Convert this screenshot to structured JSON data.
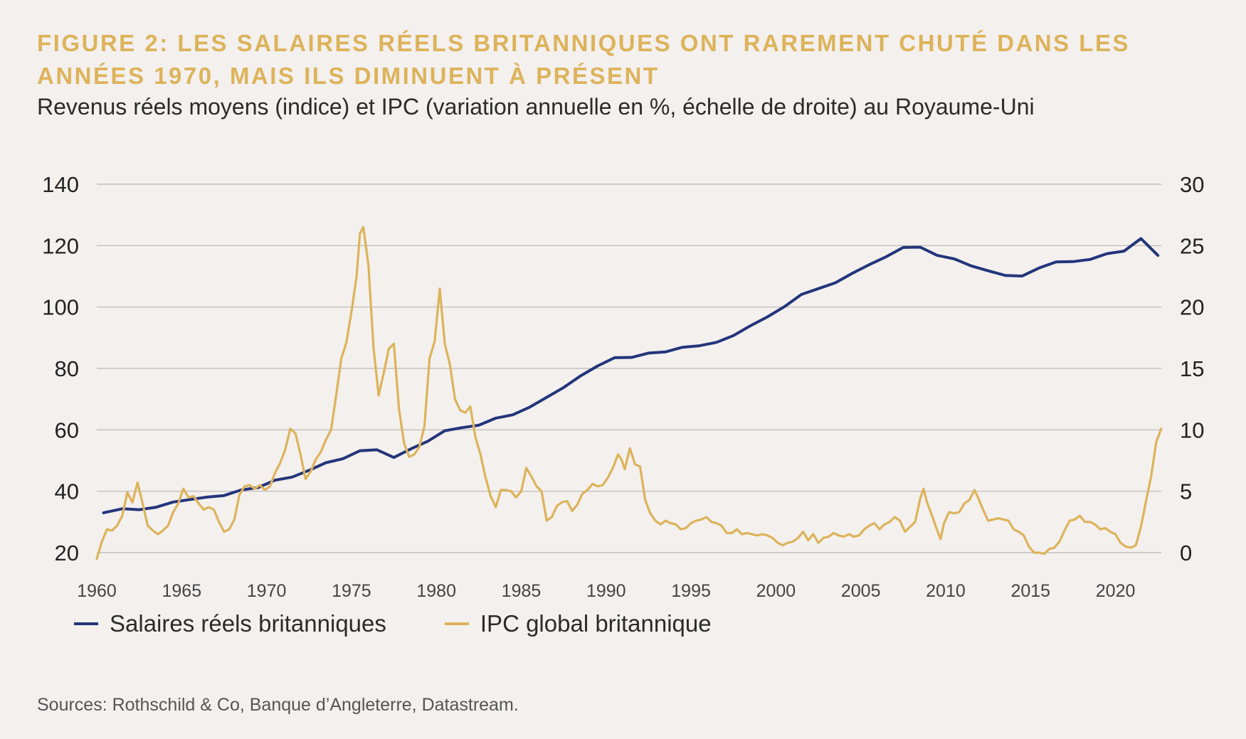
{
  "header": {
    "title": "FIGURE 2: LES SALAIRES RÉELS BRITANNIQUES ONT RAREMENT CHUTÉ DANS LES ANNÉES 1970, MAIS ILS DIMINUENT À PRÉSENT",
    "subtitle": "Revenus réels moyens (indice) et IPC (variation annuelle en %, échelle de droite) au Royaume-Uni"
  },
  "footer": {
    "source": "Sources: Rothschild & Co, Banque d’Angleterre, Datastream."
  },
  "colors": {
    "background": "#f3f0ee",
    "title": "#ddb35a",
    "wages": "#23357a",
    "cpi": "#ddb35a",
    "grid": "#b9b5b2"
  },
  "chart_data": {
    "type": "line",
    "title": "",
    "xlabel": "",
    "ylabel": "",
    "xlim": [
      1960,
      2022.7
    ],
    "ylim_left": [
      20,
      140
    ],
    "ylim_right": [
      0,
      30
    ],
    "x_ticks": [
      "1960",
      "1965",
      "1970",
      "1975",
      "1980",
      "1985",
      "1990",
      "1995",
      "2000",
      "2005",
      "2010",
      "2015",
      "2020"
    ],
    "y_ticks_left": [
      "20",
      "40",
      "60",
      "80",
      "100",
      "120",
      "140"
    ],
    "y_ticks_right": [
      "0",
      "5",
      "10",
      "15",
      "20",
      "25",
      "30"
    ],
    "grid": true,
    "legend_position": "bottom-left",
    "series": [
      {
        "name": "Salaires réels britanniques",
        "axis": "left",
        "color": "#23357a",
        "points": [
          [
            1960.4,
            33
          ],
          [
            1961.5,
            34.3
          ],
          [
            1962.5,
            34
          ],
          [
            1963.5,
            34.8
          ],
          [
            1964.5,
            36.5
          ],
          [
            1965.5,
            37.3
          ],
          [
            1966.5,
            38.1
          ],
          [
            1967.5,
            38.6
          ],
          [
            1968.5,
            40.4
          ],
          [
            1969.5,
            41.2
          ],
          [
            1970.5,
            43.6
          ],
          [
            1971.5,
            44.6
          ],
          [
            1972.5,
            46.8
          ],
          [
            1973.5,
            49.3
          ],
          [
            1974.5,
            50.6
          ],
          [
            1975.5,
            53.2
          ],
          [
            1976.5,
            53.5
          ],
          [
            1977.5,
            51
          ],
          [
            1978.5,
            53.8
          ],
          [
            1979.5,
            56.3
          ],
          [
            1980.5,
            59.7
          ],
          [
            1981.5,
            60.7
          ],
          [
            1982.5,
            61.5
          ],
          [
            1983.5,
            63.8
          ],
          [
            1984.5,
            64.9
          ],
          [
            1985.5,
            67.4
          ],
          [
            1986.5,
            70.6
          ],
          [
            1987.5,
            73.8
          ],
          [
            1988.5,
            77.6
          ],
          [
            1989.5,
            80.8
          ],
          [
            1990.5,
            83.5
          ],
          [
            1991.5,
            83.6
          ],
          [
            1992.5,
            85
          ],
          [
            1993.5,
            85.4
          ],
          [
            1994.5,
            86.9
          ],
          [
            1995.5,
            87.4
          ],
          [
            1996.5,
            88.5
          ],
          [
            1997.5,
            90.7
          ],
          [
            1998.5,
            93.9
          ],
          [
            1999.5,
            96.8
          ],
          [
            2000.5,
            100.1
          ],
          [
            2001.5,
            104.1
          ],
          [
            2002.5,
            106
          ],
          [
            2003.5,
            107.9
          ],
          [
            2004.5,
            111
          ],
          [
            2005.5,
            113.8
          ],
          [
            2006.5,
            116.4
          ],
          [
            2007.5,
            119.4
          ],
          [
            2008.5,
            119.5
          ],
          [
            2009.5,
            116.8
          ],
          [
            2010.5,
            115.7
          ],
          [
            2011.5,
            113.4
          ],
          [
            2012.5,
            111.8
          ],
          [
            2013.5,
            110.3
          ],
          [
            2014.5,
            110.1
          ],
          [
            2015.5,
            112.7
          ],
          [
            2016.5,
            114.7
          ],
          [
            2017.5,
            114.8
          ],
          [
            2018.5,
            115.5
          ],
          [
            2019.5,
            117.4
          ],
          [
            2020.5,
            118.2
          ],
          [
            2021.5,
            122.3
          ],
          [
            2022.5,
            116.8
          ]
        ]
      },
      {
        "name": "IPC global britannique",
        "axis": "right",
        "color": "#ddb35a",
        "points": [
          [
            1960,
            -0.5
          ],
          [
            1960.3,
            0.9
          ],
          [
            1960.6,
            1.9
          ],
          [
            1960.9,
            1.8
          ],
          [
            1961.2,
            2.2
          ],
          [
            1961.5,
            3
          ],
          [
            1961.8,
            4.9
          ],
          [
            1962.1,
            4.1
          ],
          [
            1962.4,
            5.7
          ],
          [
            1962.7,
            4
          ],
          [
            1963,
            2.2
          ],
          [
            1963.3,
            1.8
          ],
          [
            1963.6,
            1.5
          ],
          [
            1963.9,
            1.8
          ],
          [
            1964.2,
            2.2
          ],
          [
            1964.5,
            3.3
          ],
          [
            1964.8,
            4
          ],
          [
            1965.1,
            5.2
          ],
          [
            1965.4,
            4.5
          ],
          [
            1965.7,
            4.6
          ],
          [
            1966,
            4
          ],
          [
            1966.3,
            3.5
          ],
          [
            1966.6,
            3.7
          ],
          [
            1966.9,
            3.5
          ],
          [
            1967.2,
            2.5
          ],
          [
            1967.5,
            1.7
          ],
          [
            1967.8,
            1.9
          ],
          [
            1968.1,
            2.7
          ],
          [
            1968.4,
            4.7
          ],
          [
            1968.7,
            5.4
          ],
          [
            1969,
            5.5
          ],
          [
            1969.3,
            5.2
          ],
          [
            1969.6,
            5.5
          ],
          [
            1969.9,
            5.1
          ],
          [
            1970.2,
            5.4
          ],
          [
            1970.5,
            6.5
          ],
          [
            1970.8,
            7.3
          ],
          [
            1971.1,
            8.4
          ],
          [
            1971.4,
            10.1
          ],
          [
            1971.7,
            9.7
          ],
          [
            1972,
            8
          ],
          [
            1972.3,
            6
          ],
          [
            1972.6,
            6.6
          ],
          [
            1972.9,
            7.6
          ],
          [
            1973.2,
            8.2
          ],
          [
            1973.5,
            9.2
          ],
          [
            1973.8,
            10
          ],
          [
            1974.1,
            12.8
          ],
          [
            1974.4,
            15.8
          ],
          [
            1974.7,
            17.1
          ],
          [
            1975,
            19.6
          ],
          [
            1975.3,
            22.5
          ],
          [
            1975.5,
            26
          ],
          [
            1975.7,
            26.5
          ],
          [
            1976,
            23.4
          ],
          [
            1976.3,
            16.7
          ],
          [
            1976.6,
            12.8
          ],
          [
            1976.9,
            14.6
          ],
          [
            1977.2,
            16.6
          ],
          [
            1977.5,
            17
          ],
          [
            1977.8,
            11.7
          ],
          [
            1978.1,
            8.9
          ],
          [
            1978.4,
            7.8
          ],
          [
            1978.7,
            8
          ],
          [
            1979,
            8.6
          ],
          [
            1979.3,
            10.3
          ],
          [
            1979.6,
            15.8
          ],
          [
            1979.9,
            17.2
          ],
          [
            1980.2,
            21.5
          ],
          [
            1980.5,
            17
          ],
          [
            1980.8,
            15.3
          ],
          [
            1981.1,
            12.5
          ],
          [
            1981.4,
            11.6
          ],
          [
            1981.7,
            11.4
          ],
          [
            1982,
            11.9
          ],
          [
            1982.3,
            9.4
          ],
          [
            1982.6,
            8
          ],
          [
            1982.9,
            6.1
          ],
          [
            1983.2,
            4.6
          ],
          [
            1983.5,
            3.7
          ],
          [
            1983.8,
            5.1
          ],
          [
            1984.1,
            5.1
          ],
          [
            1984.4,
            5
          ],
          [
            1984.7,
            4.5
          ],
          [
            1985,
            5
          ],
          [
            1985.3,
            6.9
          ],
          [
            1985.6,
            6.2
          ],
          [
            1985.9,
            5.4
          ],
          [
            1986.2,
            5
          ],
          [
            1986.5,
            2.6
          ],
          [
            1986.8,
            2.9
          ],
          [
            1987.1,
            3.8
          ],
          [
            1987.4,
            4.1
          ],
          [
            1987.7,
            4.2
          ],
          [
            1988,
            3.4
          ],
          [
            1988.3,
            3.9
          ],
          [
            1988.6,
            4.8
          ],
          [
            1988.9,
            5.1
          ],
          [
            1989.2,
            5.6
          ],
          [
            1989.5,
            5.4
          ],
          [
            1989.8,
            5.5
          ],
          [
            1990.1,
            6.1
          ],
          [
            1990.4,
            6.9
          ],
          [
            1990.7,
            8
          ],
          [
            1990.9,
            7.6
          ],
          [
            1991.1,
            6.8
          ],
          [
            1991.4,
            8.5
          ],
          [
            1991.7,
            7.2
          ],
          [
            1992,
            7
          ],
          [
            1992.3,
            4.3
          ],
          [
            1992.6,
            3.2
          ],
          [
            1992.9,
            2.6
          ],
          [
            1993.2,
            2.3
          ],
          [
            1993.5,
            2.6
          ],
          [
            1993.8,
            2.4
          ],
          [
            1994.1,
            2.3
          ],
          [
            1994.4,
            1.9
          ],
          [
            1994.7,
            2
          ],
          [
            1995,
            2.4
          ],
          [
            1995.3,
            2.6
          ],
          [
            1995.6,
            2.7
          ],
          [
            1995.9,
            2.9
          ],
          [
            1996.2,
            2.5
          ],
          [
            1996.5,
            2.4
          ],
          [
            1996.8,
            2.2
          ],
          [
            1997.1,
            1.6
          ],
          [
            1997.4,
            1.6
          ],
          [
            1997.7,
            1.9
          ],
          [
            1998,
            1.5
          ],
          [
            1998.3,
            1.6
          ],
          [
            1998.6,
            1.5
          ],
          [
            1998.9,
            1.4
          ],
          [
            1999.2,
            1.5
          ],
          [
            1999.5,
            1.4
          ],
          [
            1999.8,
            1.2
          ],
          [
            2000.1,
            0.8
          ],
          [
            2000.4,
            0.6
          ],
          [
            2000.7,
            0.8
          ],
          [
            2001,
            0.9
          ],
          [
            2001.3,
            1.2
          ],
          [
            2001.6,
            1.7
          ],
          [
            2001.9,
            1
          ],
          [
            2002.2,
            1.5
          ],
          [
            2002.5,
            0.8
          ],
          [
            2002.8,
            1.2
          ],
          [
            2003.1,
            1.3
          ],
          [
            2003.4,
            1.6
          ],
          [
            2003.7,
            1.4
          ],
          [
            2004,
            1.3
          ],
          [
            2004.3,
            1.5
          ],
          [
            2004.6,
            1.3
          ],
          [
            2004.9,
            1.4
          ],
          [
            2005.2,
            1.9
          ],
          [
            2005.5,
            2.2
          ],
          [
            2005.8,
            2.4
          ],
          [
            2006.1,
            1.9
          ],
          [
            2006.4,
            2.3
          ],
          [
            2006.7,
            2.5
          ],
          [
            2007,
            2.9
          ],
          [
            2007.3,
            2.6
          ],
          [
            2007.6,
            1.7
          ],
          [
            2007.9,
            2.1
          ],
          [
            2008.2,
            2.5
          ],
          [
            2008.5,
            4.4
          ],
          [
            2008.7,
            5.2
          ],
          [
            2008.9,
            4.1
          ],
          [
            2009.2,
            3
          ],
          [
            2009.5,
            1.8
          ],
          [
            2009.7,
            1.1
          ],
          [
            2009.9,
            2.4
          ],
          [
            2010.2,
            3.3
          ],
          [
            2010.5,
            3.2
          ],
          [
            2010.8,
            3.3
          ],
          [
            2011.1,
            4
          ],
          [
            2011.4,
            4.3
          ],
          [
            2011.7,
            5.1
          ],
          [
            2011.9,
            4.5
          ],
          [
            2012.2,
            3.5
          ],
          [
            2012.5,
            2.6
          ],
          [
            2012.8,
            2.7
          ],
          [
            2013.1,
            2.8
          ],
          [
            2013.4,
            2.7
          ],
          [
            2013.7,
            2.6
          ],
          [
            2014,
            1.9
          ],
          [
            2014.3,
            1.7
          ],
          [
            2014.6,
            1.4
          ],
          [
            2014.9,
            0.5
          ],
          [
            2015.2,
            0
          ],
          [
            2015.5,
            0
          ],
          [
            2015.8,
            -0.1
          ],
          [
            2016.1,
            0.3
          ],
          [
            2016.4,
            0.4
          ],
          [
            2016.7,
            0.9
          ],
          [
            2017,
            1.8
          ],
          [
            2017.3,
            2.6
          ],
          [
            2017.6,
            2.7
          ],
          [
            2017.9,
            3
          ],
          [
            2018.2,
            2.5
          ],
          [
            2018.5,
            2.5
          ],
          [
            2018.8,
            2.3
          ],
          [
            2019.1,
            1.9
          ],
          [
            2019.4,
            2
          ],
          [
            2019.7,
            1.7
          ],
          [
            2020,
            1.5
          ],
          [
            2020.3,
            0.8
          ],
          [
            2020.6,
            0.5
          ],
          [
            2020.9,
            0.4
          ],
          [
            2021.2,
            0.6
          ],
          [
            2021.5,
            2.1
          ],
          [
            2021.8,
            4.2
          ],
          [
            2022.1,
            6.2
          ],
          [
            2022.4,
            9
          ],
          [
            2022.7,
            10.1
          ]
        ]
      }
    ]
  }
}
